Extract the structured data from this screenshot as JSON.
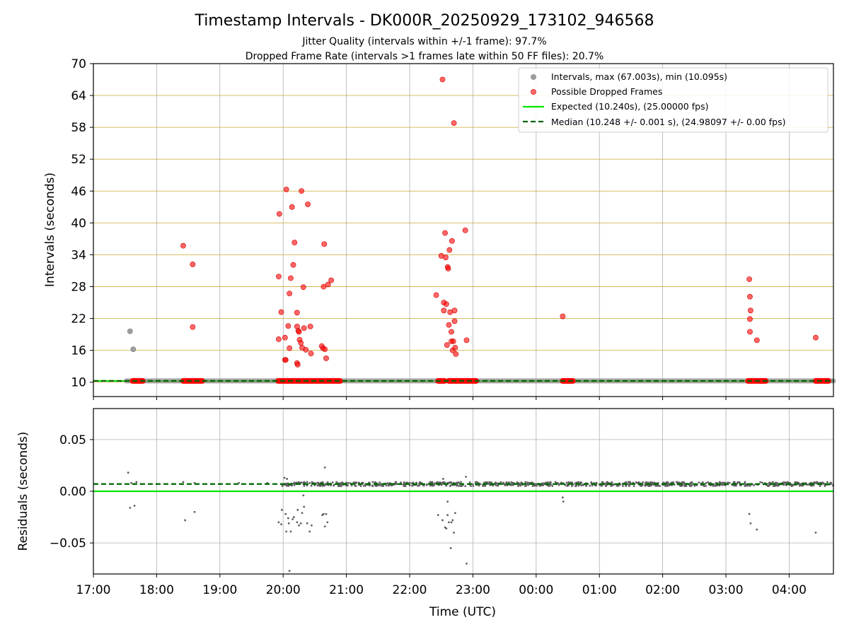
{
  "chart_data": {
    "title": "Timestamp Intervals - DK000R_20250929_173102_946568",
    "subtitle_lines": [
      "Jitter Quality (intervals within +/-1 frame): 97.7%",
      "Dropped Frame Rate (intervals >1 frames late within 50 FF files): 20.7%"
    ],
    "xlabel": "Time (UTC)",
    "x_tick_labels": [
      "17:00",
      "18:00",
      "19:00",
      "20:00",
      "21:00",
      "22:00",
      "23:00",
      "00:00",
      "01:00",
      "02:00",
      "03:00",
      "04:00"
    ],
    "x_range_hours": [
      17.0,
      28.7
    ],
    "panels": [
      {
        "type": "scatter",
        "ylabel": "Intervals (seconds)",
        "ylim": [
          7.3,
          70
        ],
        "y_ticks": [
          10,
          16,
          22,
          28,
          34,
          40,
          46,
          52,
          58,
          64,
          70
        ],
        "y_tick_labels": [
          "10",
          "16",
          "22",
          "28",
          "34",
          "40",
          "46",
          "52",
          "58",
          "64",
          "70"
        ],
        "legend_position": "top-right",
        "legend": [
          "Intervals, max (67.003s), min (10.095s)",
          "Possible Dropped Frames",
          "Expected (10.240s), (25.00000 fps)",
          "Median (10.248 +/- 0.001 s), (24.98097 +/- 0.00 fps)"
        ],
        "expected_line": 10.24,
        "median_line": 10.248,
        "baseline_series": {
          "name": "Intervals",
          "x_start": 17.52,
          "x_end": 28.7,
          "y": 10.24
        },
        "normal_points": [
          {
            "x": 17.58,
            "y": 19.6
          },
          {
            "x": 17.63,
            "y": 16.2
          }
        ],
        "dropped_bands": [
          {
            "x_start": 17.62,
            "x_end": 17.78,
            "y": 10.24
          },
          {
            "x_start": 18.42,
            "x_end": 18.72,
            "y": 10.24
          },
          {
            "x_start": 19.92,
            "x_end": 20.9,
            "y": 10.24
          },
          {
            "x_start": 22.45,
            "x_end": 22.55,
            "y": 10.24
          },
          {
            "x_start": 22.62,
            "x_end": 23.05,
            "y": 10.24
          },
          {
            "x_start": 24.42,
            "x_end": 24.58,
            "y": 10.24
          },
          {
            "x_start": 27.35,
            "x_end": 27.63,
            "y": 10.24
          },
          {
            "x_start": 28.42,
            "x_end": 28.62,
            "y": 10.24
          }
        ],
        "dropped_points": [
          {
            "x": 18.42,
            "y": 35.7
          },
          {
            "x": 18.57,
            "y": 32.2
          },
          {
            "x": 18.57,
            "y": 20.4
          },
          {
            "x": 19.93,
            "y": 29.9
          },
          {
            "x": 19.94,
            "y": 41.7
          },
          {
            "x": 19.93,
            "y": 18.1
          },
          {
            "x": 19.97,
            "y": 23.2
          },
          {
            "x": 20.03,
            "y": 18.4
          },
          {
            "x": 20.03,
            "y": 14.2
          },
          {
            "x": 20.04,
            "y": 14.2
          },
          {
            "x": 20.05,
            "y": 46.3
          },
          {
            "x": 20.08,
            "y": 20.6
          },
          {
            "x": 20.1,
            "y": 26.7
          },
          {
            "x": 20.1,
            "y": 16.4
          },
          {
            "x": 20.12,
            "y": 29.6
          },
          {
            "x": 20.14,
            "y": 43.0
          },
          {
            "x": 20.16,
            "y": 32.1
          },
          {
            "x": 20.18,
            "y": 36.3
          },
          {
            "x": 20.22,
            "y": 23.1
          },
          {
            "x": 20.22,
            "y": 20.5
          },
          {
            "x": 20.22,
            "y": 13.6
          },
          {
            "x": 20.23,
            "y": 13.3
          },
          {
            "x": 20.24,
            "y": 19.7
          },
          {
            "x": 20.25,
            "y": 19.5
          },
          {
            "x": 20.26,
            "y": 18.0
          },
          {
            "x": 20.28,
            "y": 17.4
          },
          {
            "x": 20.29,
            "y": 46.0
          },
          {
            "x": 20.3,
            "y": 16.5
          },
          {
            "x": 20.32,
            "y": 27.9
          },
          {
            "x": 20.33,
            "y": 20.2
          },
          {
            "x": 20.36,
            "y": 16.1
          },
          {
            "x": 20.39,
            "y": 43.5
          },
          {
            "x": 20.43,
            "y": 20.5
          },
          {
            "x": 20.44,
            "y": 15.4
          },
          {
            "x": 20.61,
            "y": 16.8
          },
          {
            "x": 20.63,
            "y": 16.4
          },
          {
            "x": 20.64,
            "y": 28.0
          },
          {
            "x": 20.65,
            "y": 36.0
          },
          {
            "x": 20.66,
            "y": 16.2
          },
          {
            "x": 20.68,
            "y": 14.5
          },
          {
            "x": 20.71,
            "y": 28.4
          },
          {
            "x": 20.76,
            "y": 29.2
          },
          {
            "x": 22.42,
            "y": 26.4
          },
          {
            "x": 22.5,
            "y": 33.8
          },
          {
            "x": 22.52,
            "y": 67.0
          },
          {
            "x": 22.54,
            "y": 25.0
          },
          {
            "x": 22.54,
            "y": 23.5
          },
          {
            "x": 22.56,
            "y": 38.1
          },
          {
            "x": 22.57,
            "y": 33.5
          },
          {
            "x": 22.58,
            "y": 24.7
          },
          {
            "x": 22.59,
            "y": 17.0
          },
          {
            "x": 22.6,
            "y": 31.7
          },
          {
            "x": 22.61,
            "y": 31.4
          },
          {
            "x": 22.62,
            "y": 20.8
          },
          {
            "x": 22.63,
            "y": 34.9
          },
          {
            "x": 22.64,
            "y": 23.2
          },
          {
            "x": 22.66,
            "y": 19.5
          },
          {
            "x": 22.66,
            "y": 17.7
          },
          {
            "x": 22.67,
            "y": 36.6
          },
          {
            "x": 22.68,
            "y": 16.0
          },
          {
            "x": 22.69,
            "y": 17.7
          },
          {
            "x": 22.7,
            "y": 58.8
          },
          {
            "x": 22.71,
            "y": 23.5
          },
          {
            "x": 22.71,
            "y": 21.5
          },
          {
            "x": 22.72,
            "y": 16.5
          },
          {
            "x": 22.73,
            "y": 15.3
          },
          {
            "x": 22.88,
            "y": 38.6
          },
          {
            "x": 22.9,
            "y": 17.9
          },
          {
            "x": 24.42,
            "y": 22.4
          },
          {
            "x": 27.37,
            "y": 29.4
          },
          {
            "x": 27.38,
            "y": 26.1
          },
          {
            "x": 27.38,
            "y": 21.9
          },
          {
            "x": 27.39,
            "y": 23.5
          },
          {
            "x": 27.38,
            "y": 19.5
          },
          {
            "x": 27.49,
            "y": 17.9
          },
          {
            "x": 28.42,
            "y": 18.4
          }
        ]
      },
      {
        "type": "scatter",
        "ylabel": "Residuals (seconds)",
        "ylim": [
          -0.08,
          0.08
        ],
        "y_ticks": [
          0.05,
          0.0,
          -0.05
        ],
        "y_tick_labels": [
          "0.05",
          "0.00",
          "−0.05"
        ],
        "expected_line": 0.0,
        "median_line": 0.007,
        "dense_band": {
          "x_start": 19.95,
          "x_end": 28.7,
          "y_center": 0.007,
          "y_spread": 0.002
        },
        "early_points": [
          {
            "x": 17.55,
            "y": 0.018
          },
          {
            "x": 17.6,
            "y": 0.008
          },
          {
            "x": 17.65,
            "y": 0.007
          },
          {
            "x": 17.68,
            "y": 0.009
          },
          {
            "x": 17.75,
            "y": 0.007
          },
          {
            "x": 18.0,
            "y": 0.007
          },
          {
            "x": 18.42,
            "y": 0.009
          },
          {
            "x": 18.6,
            "y": 0.008
          },
          {
            "x": 19.0,
            "y": 0.007
          },
          {
            "x": 19.3,
            "y": 0.008
          },
          {
            "x": 19.5,
            "y": 0.007
          },
          {
            "x": 19.75,
            "y": 0.008
          }
        ],
        "outlier_points": [
          {
            "x": 17.58,
            "y": -0.016
          },
          {
            "x": 17.65,
            "y": -0.014
          },
          {
            "x": 18.45,
            "y": -0.028
          },
          {
            "x": 18.6,
            "y": -0.02
          },
          {
            "x": 19.93,
            "y": -0.03
          },
          {
            "x": 19.97,
            "y": -0.032
          },
          {
            "x": 19.98,
            "y": -0.018
          },
          {
            "x": 20.04,
            "y": -0.022
          },
          {
            "x": 20.05,
            "y": -0.039
          },
          {
            "x": 20.08,
            "y": -0.026
          },
          {
            "x": 20.09,
            "y": -0.031
          },
          {
            "x": 20.1,
            "y": -0.077
          },
          {
            "x": 20.12,
            "y": -0.039
          },
          {
            "x": 20.15,
            "y": -0.027
          },
          {
            "x": 20.17,
            "y": -0.025
          },
          {
            "x": 20.22,
            "y": -0.03
          },
          {
            "x": 20.23,
            "y": -0.018
          },
          {
            "x": 20.25,
            "y": -0.033
          },
          {
            "x": 20.28,
            "y": -0.031
          },
          {
            "x": 20.3,
            "y": -0.021
          },
          {
            "x": 20.32,
            "y": -0.004
          },
          {
            "x": 20.33,
            "y": -0.015
          },
          {
            "x": 20.38,
            "y": -0.031
          },
          {
            "x": 20.42,
            "y": -0.039
          },
          {
            "x": 20.45,
            "y": -0.033
          },
          {
            "x": 20.62,
            "y": -0.023
          },
          {
            "x": 20.64,
            "y": -0.022
          },
          {
            "x": 20.66,
            "y": -0.034
          },
          {
            "x": 20.68,
            "y": -0.022
          },
          {
            "x": 20.7,
            "y": -0.03
          },
          {
            "x": 20.02,
            "y": 0.013
          },
          {
            "x": 20.06,
            "y": 0.012
          },
          {
            "x": 20.66,
            "y": 0.023
          },
          {
            "x": 22.45,
            "y": -0.023
          },
          {
            "x": 22.52,
            "y": -0.028
          },
          {
            "x": 22.53,
            "y": 0.012
          },
          {
            "x": 22.56,
            "y": -0.035
          },
          {
            "x": 22.58,
            "y": -0.036
          },
          {
            "x": 22.6,
            "y": -0.01
          },
          {
            "x": 22.6,
            "y": -0.023
          },
          {
            "x": 22.62,
            "y": -0.03
          },
          {
            "x": 22.65,
            "y": -0.055
          },
          {
            "x": 22.66,
            "y": -0.03
          },
          {
            "x": 22.68,
            "y": -0.028
          },
          {
            "x": 22.7,
            "y": -0.04
          },
          {
            "x": 22.72,
            "y": -0.021
          },
          {
            "x": 22.9,
            "y": -0.07
          },
          {
            "x": 22.89,
            "y": 0.014
          },
          {
            "x": 24.42,
            "y": -0.006
          },
          {
            "x": 24.43,
            "y": -0.01
          },
          {
            "x": 27.37,
            "y": -0.022
          },
          {
            "x": 27.39,
            "y": -0.031
          },
          {
            "x": 27.49,
            "y": -0.037
          },
          {
            "x": 28.42,
            "y": -0.04
          }
        ]
      }
    ]
  },
  "colors": {
    "normal_point": "#9e9e9e",
    "dropped_point": "#ff0000",
    "expected": "#00e600",
    "median": "#006400",
    "grid": "#b0b0b0",
    "gold_grid": "#c9a227",
    "residual_point": "#606060"
  }
}
